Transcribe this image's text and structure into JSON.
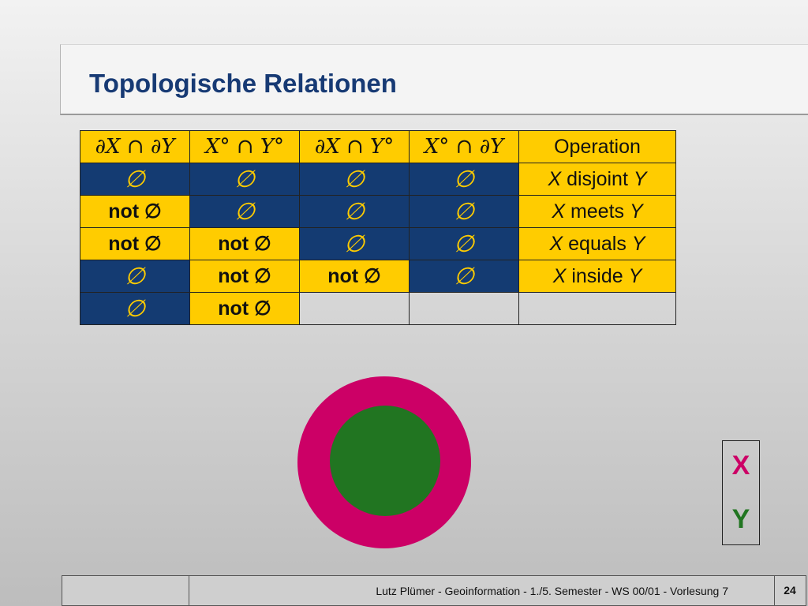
{
  "title": "Topologische Relationen",
  "table": {
    "headers": [
      "∂X ∩ ∂Y",
      "X° ∩ Y°",
      "∂X ∩ Y°",
      "X° ∩ ∂Y",
      "Operation"
    ],
    "empty_symbol": "∅",
    "not_empty": "not ∅",
    "not_word": "not",
    "rows": [
      {
        "cells": [
          "∅",
          "∅",
          "∅",
          "∅"
        ],
        "op": {
          "x": "X",
          "rel": "disjoint",
          "y": "Y"
        }
      },
      {
        "cells": [
          "not ∅",
          "∅",
          "∅",
          "∅"
        ],
        "op": {
          "x": "X",
          "rel": "meets",
          "y": "Y"
        }
      },
      {
        "cells": [
          "not ∅",
          "not ∅",
          "∅",
          "∅"
        ],
        "op": {
          "x": "X",
          "rel": "equals",
          "y": "Y"
        }
      },
      {
        "cells": [
          "∅",
          "not ∅",
          "not ∅",
          "∅"
        ],
        "op": {
          "x": "X",
          "rel": "inside",
          "y": "Y"
        }
      },
      {
        "cells": [
          "∅",
          "not ∅"
        ]
      }
    ]
  },
  "legend": {
    "x_label": "X",
    "x_color": "#cc0066",
    "y_label": "Y",
    "y_color": "#217521"
  },
  "footer": {
    "text": "Lutz Plümer  -  Geoinformation  -  1./5. Semester  -  WS 00/01  -  Vorlesung 7",
    "page": "24"
  }
}
